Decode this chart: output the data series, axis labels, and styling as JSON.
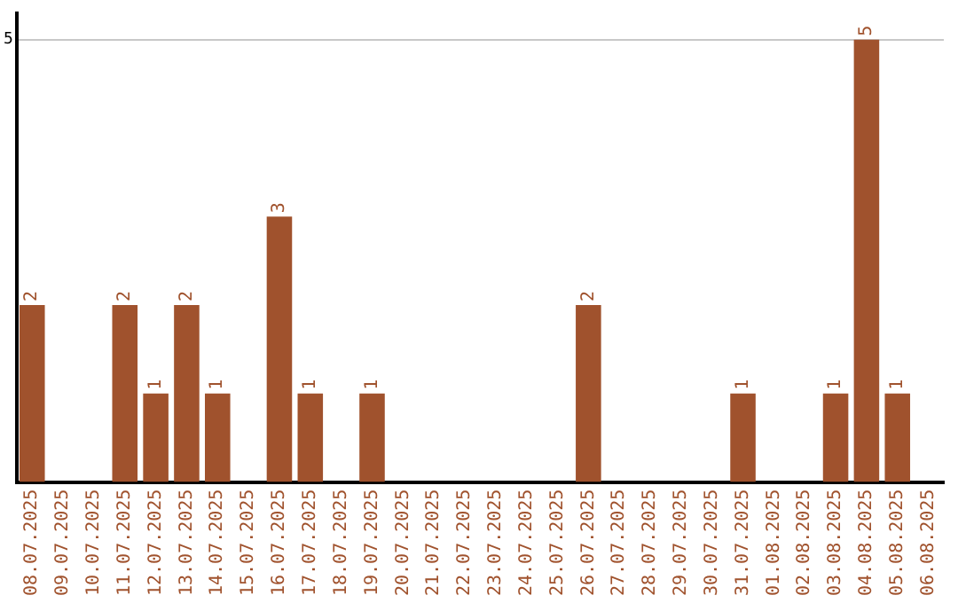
{
  "chart_data": {
    "type": "bar",
    "categories": [
      "08.07.2025",
      "09.07.2025",
      "10.07.2025",
      "11.07.2025",
      "12.07.2025",
      "13.07.2025",
      "14.07.2025",
      "15.07.2025",
      "16.07.2025",
      "17.07.2025",
      "18.07.2025",
      "19.07.2025",
      "20.07.2025",
      "21.07.2025",
      "22.07.2025",
      "23.07.2025",
      "24.07.2025",
      "25.07.2025",
      "26.07.2025",
      "27.07.2025",
      "28.07.2025",
      "29.07.2025",
      "30.07.2025",
      "31.07.2025",
      "01.08.2025",
      "02.08.2025",
      "03.08.2025",
      "04.08.2025",
      "05.08.2025",
      "06.08.2025"
    ],
    "values": [
      2,
      0,
      0,
      2,
      1,
      2,
      1,
      0,
      3,
      1,
      0,
      1,
      0,
      0,
      0,
      0,
      0,
      0,
      2,
      0,
      0,
      0,
      0,
      1,
      0,
      0,
      1,
      5,
      1,
      0
    ],
    "value_labels": [
      "2",
      null,
      null,
      "2",
      "1",
      "2",
      "1",
      null,
      "3",
      "1",
      null,
      "1",
      null,
      null,
      null,
      null,
      null,
      null,
      "2",
      null,
      null,
      null,
      null,
      "1",
      null,
      null,
      "1",
      "5",
      "1",
      null
    ],
    "color": "#a0522d",
    "ylim": [
      0,
      5.3
    ],
    "yticks": [
      5
    ],
    "grid": "y"
  }
}
